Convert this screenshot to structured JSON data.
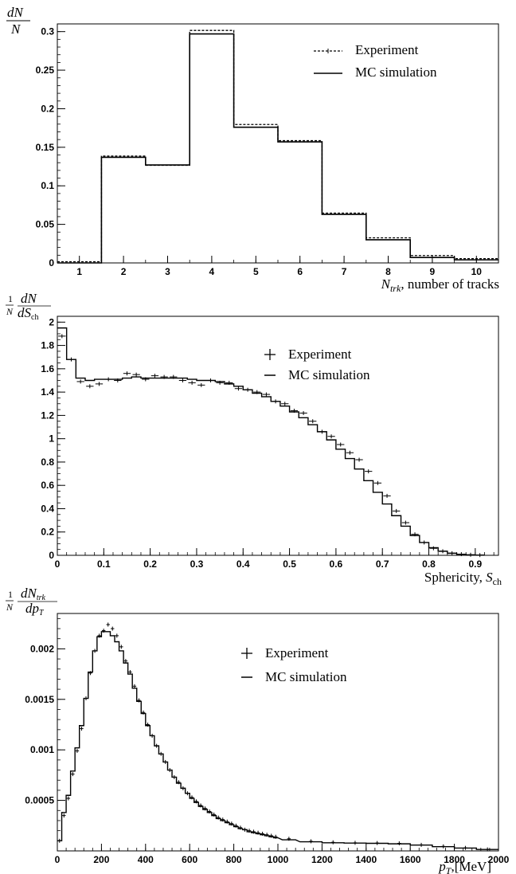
{
  "chart_data": [
    {
      "type": "histogram",
      "ylabel": {
        "num": "dN",
        "den": "N"
      },
      "xlabel": {
        "main": "N",
        "sub": "trk",
        "rest": ", number of tracks"
      },
      "xlim": [
        0.5,
        10.5
      ],
      "ylim": [
        0,
        0.31
      ],
      "xticks": [
        "1",
        "2",
        "3",
        "4",
        "5",
        "6",
        "7",
        "8",
        "9",
        "10"
      ],
      "yticks": [
        "0",
        "0.05",
        "0.1",
        "0.15",
        "0.2",
        "0.25",
        "0.3"
      ],
      "legend_position": "top-right",
      "series": [
        {
          "name": "Experiment",
          "style": "dashed",
          "bins": [
            1,
            2,
            3,
            4,
            5,
            6,
            7,
            8,
            9,
            10
          ],
          "values": [
            0,
            0.137,
            0.125,
            0.3,
            0.178,
            0.157,
            0.063,
            0.031,
            0.008,
            0.004
          ]
        },
        {
          "name": "MC simulation",
          "style": "solid",
          "bins": [
            1,
            2,
            3,
            4,
            5,
            6,
            7,
            8,
            9,
            10
          ],
          "values": [
            0,
            0.137,
            0.127,
            0.297,
            0.176,
            0.157,
            0.063,
            0.03,
            0.007,
            0.004
          ]
        }
      ]
    },
    {
      "type": "histogram",
      "ylabel": {
        "pre": "1",
        "preden": "N",
        "num": "dN",
        "den": "dS",
        "densub": "ch"
      },
      "xlabel": {
        "main": "Sphericity, ",
        "var": "S",
        "sub": "ch"
      },
      "xlim": [
        0,
        0.95
      ],
      "ylim": [
        0,
        2.05
      ],
      "xticks": [
        "0",
        "0.1",
        "0.2",
        "0.3",
        "0.4",
        "0.5",
        "0.6",
        "0.7",
        "0.8",
        "0.9"
      ],
      "yticks": [
        "0",
        "0.2",
        "0.4",
        "0.6",
        "0.8",
        "1",
        "1.2",
        "1.4",
        "1.6",
        "1.8",
        "2"
      ],
      "legend_position": "top-right",
      "bin_width": 0.02,
      "series": [
        {
          "name": "Experiment",
          "style": "points",
          "x": [
            0.01,
            0.03,
            0.05,
            0.07,
            0.09,
            0.11,
            0.13,
            0.15,
            0.17,
            0.19,
            0.21,
            0.23,
            0.25,
            0.27,
            0.29,
            0.31,
            0.33,
            0.35,
            0.37,
            0.39,
            0.41,
            0.43,
            0.45,
            0.47,
            0.49,
            0.51,
            0.53,
            0.55,
            0.57,
            0.59,
            0.61,
            0.63,
            0.65,
            0.67,
            0.69,
            0.71,
            0.73,
            0.75,
            0.77,
            0.79,
            0.81,
            0.83,
            0.85,
            0.87,
            0.89,
            0.91
          ],
          "values": [
            1.88,
            1.68,
            1.49,
            1.45,
            1.47,
            1.51,
            1.5,
            1.56,
            1.55,
            1.51,
            1.54,
            1.53,
            1.53,
            1.5,
            1.48,
            1.46,
            1.5,
            1.48,
            1.48,
            1.43,
            1.42,
            1.4,
            1.38,
            1.32,
            1.3,
            1.24,
            1.22,
            1.15,
            1.06,
            1.02,
            0.95,
            0.88,
            0.82,
            0.72,
            0.62,
            0.51,
            0.38,
            0.28,
            0.18,
            0.11,
            0.06,
            0.035,
            0.018,
            0.01,
            0.005,
            0.002
          ]
        },
        {
          "name": "MC simulation",
          "style": "step",
          "x": [
            0.01,
            0.03,
            0.05,
            0.07,
            0.09,
            0.11,
            0.13,
            0.15,
            0.17,
            0.19,
            0.21,
            0.23,
            0.25,
            0.27,
            0.29,
            0.31,
            0.33,
            0.35,
            0.37,
            0.39,
            0.41,
            0.43,
            0.45,
            0.47,
            0.49,
            0.51,
            0.53,
            0.55,
            0.57,
            0.59,
            0.61,
            0.63,
            0.65,
            0.67,
            0.69,
            0.71,
            0.73,
            0.75,
            0.77,
            0.79,
            0.81,
            0.83,
            0.85,
            0.87,
            0.89,
            0.91
          ],
          "values": [
            1.95,
            1.68,
            1.52,
            1.5,
            1.51,
            1.51,
            1.51,
            1.52,
            1.53,
            1.52,
            1.52,
            1.52,
            1.52,
            1.52,
            1.51,
            1.5,
            1.5,
            1.49,
            1.47,
            1.45,
            1.42,
            1.39,
            1.36,
            1.32,
            1.28,
            1.23,
            1.18,
            1.12,
            1.06,
            0.99,
            0.91,
            0.83,
            0.74,
            0.64,
            0.54,
            0.44,
            0.34,
            0.25,
            0.17,
            0.11,
            0.065,
            0.035,
            0.018,
            0.009,
            0.004,
            0.002
          ]
        }
      ]
    },
    {
      "type": "histogram",
      "ylabel": {
        "pre": "1",
        "preden": "N",
        "num": "dN",
        "numsub": "trk",
        "den": "dp",
        "densub": "T"
      },
      "xlabel": {
        "var": "p",
        "sub": "T",
        "rest": ",[MeV]"
      },
      "xlim": [
        0,
        2000
      ],
      "ylim": [
        0,
        0.00235
      ],
      "xticks": [
        "0",
        "200",
        "400",
        "600",
        "800",
        "1000",
        "1200",
        "1400",
        "1600",
        "1800",
        "2000"
      ],
      "yticks": [
        "0.0005",
        "0.001",
        "0.0015",
        "0.002"
      ],
      "legend_position": "top-right",
      "bin_width": 20,
      "series": [
        {
          "name": "Experiment",
          "style": "points",
          "x": [
            10,
            30,
            50,
            70,
            90,
            110,
            130,
            150,
            170,
            190,
            210,
            230,
            250,
            270,
            290,
            310,
            330,
            350,
            370,
            390,
            410,
            430,
            450,
            470,
            490,
            510,
            530,
            550,
            570,
            590,
            610,
            630,
            650,
            670,
            690,
            710,
            730,
            750,
            770,
            790,
            810,
            830,
            850,
            870,
            890,
            910,
            930,
            950,
            970,
            990,
            1050,
            1150,
            1250,
            1350,
            1450,
            1550,
            1650,
            1750,
            1850,
            1950
          ],
          "values": [
            0.0001,
            0.00035,
            0.00052,
            0.00076,
            0.00099,
            0.00121,
            0.00151,
            0.00176,
            0.00198,
            0.00213,
            0.00218,
            0.00224,
            0.0022,
            0.00213,
            0.00202,
            0.00188,
            0.00177,
            0.00163,
            0.00149,
            0.00137,
            0.00125,
            0.00114,
            0.00104,
            0.00096,
            0.00088,
            0.0008,
            0.00073,
            0.00068,
            0.00062,
            0.00057,
            0.00053,
            0.00049,
            0.00045,
            0.00042,
            0.00039,
            0.00036,
            0.00033,
            0.00031,
            0.00029,
            0.00027,
            0.00025,
            0.00023,
            0.00021,
            0.0002,
            0.00019,
            0.00018,
            0.00017,
            0.00016,
            0.00015,
            0.00014,
            0.00012,
            9.5e-05,
            8.5e-05,
            8e-05,
            7.8e-05,
            7.5e-05,
            6e-05,
            4.5e-05,
            3e-05,
            1.5e-05
          ]
        },
        {
          "name": "MC simulation",
          "style": "step",
          "x": [
            10,
            30,
            50,
            70,
            90,
            110,
            130,
            150,
            170,
            190,
            210,
            230,
            250,
            270,
            290,
            310,
            330,
            350,
            370,
            390,
            410,
            430,
            450,
            470,
            490,
            510,
            530,
            550,
            570,
            590,
            610,
            630,
            650,
            670,
            690,
            710,
            730,
            750,
            770,
            790,
            810,
            830,
            850,
            870,
            890,
            910,
            930,
            950,
            970,
            990,
            1050,
            1150,
            1250,
            1350,
            1450,
            1550,
            1650,
            1750,
            1850,
            1950
          ],
          "values": [
            0.0001,
            0.00038,
            0.00055,
            0.00079,
            0.00102,
            0.00124,
            0.00151,
            0.00177,
            0.00198,
            0.00212,
            0.00217,
            0.00217,
            0.00213,
            0.00207,
            0.00198,
            0.00186,
            0.00175,
            0.00161,
            0.00148,
            0.00136,
            0.00124,
            0.00114,
            0.00104,
            0.00096,
            0.00088,
            0.0008,
            0.00073,
            0.00067,
            0.00062,
            0.00057,
            0.00052,
            0.00048,
            0.00044,
            0.00041,
            0.00038,
            0.00035,
            0.00032,
            0.0003,
            0.00028,
            0.00026,
            0.00024,
            0.00022,
            0.00021,
            0.00019,
            0.00018,
            0.00017,
            0.00016,
            0.00015,
            0.00014,
            0.00013,
            0.00011,
            9e-05,
            8e-05,
            7.7e-05,
            7.5e-05,
            7e-05,
            5.8e-05,
            4.2e-05,
            2.8e-05,
            1.4e-05
          ]
        }
      ]
    }
  ]
}
